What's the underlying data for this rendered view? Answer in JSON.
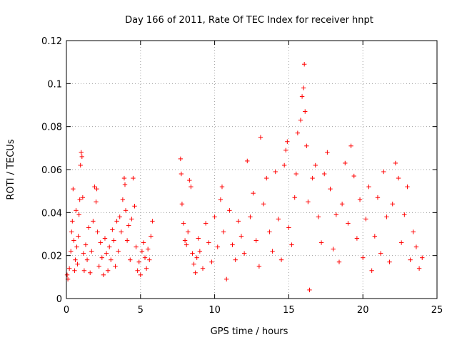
{
  "chart_data": {
    "type": "scatter",
    "title": "Day 166 of 2011, Rate Of TEC Index for receiver hnpt",
    "xlabel": "GPS time / hours",
    "ylabel": "ROTI / TECUs",
    "xlim": [
      0,
      25
    ],
    "ylim": [
      0,
      0.12
    ],
    "x_ticks": [
      "0",
      "5",
      "10",
      "15",
      "20",
      "25"
    ],
    "y_ticks": [
      "0",
      "0.02",
      "0.04",
      "0.06",
      "0.08",
      "0.1",
      "0.12"
    ],
    "grid": true,
    "marker": "+",
    "color": "#ff0000",
    "series": [
      {
        "points": [
          [
            0.05,
            0.011
          ],
          [
            0.1,
            0.009
          ],
          [
            0.2,
            0.014
          ],
          [
            0.3,
            0.022
          ],
          [
            0.35,
            0.031
          ],
          [
            0.4,
            0.036
          ],
          [
            0.45,
            0.051
          ],
          [
            0.5,
            0.027
          ],
          [
            0.55,
            0.013
          ],
          [
            0.6,
            0.018
          ],
          [
            0.65,
            0.041
          ],
          [
            0.7,
            0.024
          ],
          [
            0.75,
            0.016
          ],
          [
            0.8,
            0.029
          ],
          [
            0.85,
            0.039
          ],
          [
            0.9,
            0.046
          ],
          [
            0.95,
            0.062
          ],
          [
            1.0,
            0.068
          ],
          [
            1.05,
            0.066
          ],
          [
            1.1,
            0.047
          ],
          [
            1.15,
            0.021
          ],
          [
            1.2,
            0.013
          ],
          [
            1.3,
            0.025
          ],
          [
            1.4,
            0.018
          ],
          [
            1.5,
            0.033
          ],
          [
            1.6,
            0.012
          ],
          [
            1.7,
            0.022
          ],
          [
            1.8,
            0.036
          ],
          [
            1.9,
            0.052
          ],
          [
            2.0,
            0.045
          ],
          [
            2.05,
            0.051
          ],
          [
            2.1,
            0.031
          ],
          [
            2.2,
            0.015
          ],
          [
            2.3,
            0.026
          ],
          [
            2.4,
            0.019
          ],
          [
            2.5,
            0.011
          ],
          [
            2.6,
            0.028
          ],
          [
            2.7,
            0.021
          ],
          [
            2.8,
            0.013
          ],
          [
            2.9,
            0.024
          ],
          [
            3.0,
            0.018
          ],
          [
            3.1,
            0.032
          ],
          [
            3.2,
            0.027
          ],
          [
            3.3,
            0.015
          ],
          [
            3.4,
            0.036
          ],
          [
            3.5,
            0.022
          ],
          [
            3.6,
            0.038
          ],
          [
            3.7,
            0.031
          ],
          [
            3.8,
            0.046
          ],
          [
            3.9,
            0.056
          ],
          [
            3.95,
            0.053
          ],
          [
            4.0,
            0.041
          ],
          [
            4.1,
            0.027
          ],
          [
            4.2,
            0.034
          ],
          [
            4.3,
            0.018
          ],
          [
            4.4,
            0.037
          ],
          [
            4.5,
            0.056
          ],
          [
            4.6,
            0.043
          ],
          [
            4.7,
            0.024
          ],
          [
            4.8,
            0.013
          ],
          [
            4.9,
            0.017
          ],
          [
            5.0,
            0.011
          ],
          [
            5.1,
            0.022
          ],
          [
            5.2,
            0.026
          ],
          [
            5.3,
            0.019
          ],
          [
            5.4,
            0.014
          ],
          [
            5.5,
            0.023
          ],
          [
            5.6,
            0.018
          ],
          [
            5.7,
            0.029
          ],
          [
            5.8,
            0.036
          ],
          [
            7.7,
            0.065
          ],
          [
            7.75,
            0.058
          ],
          [
            7.8,
            0.044
          ],
          [
            7.9,
            0.035
          ],
          [
            8.0,
            0.027
          ],
          [
            8.1,
            0.025
          ],
          [
            8.2,
            0.031
          ],
          [
            8.3,
            0.055
          ],
          [
            8.4,
            0.052
          ],
          [
            8.5,
            0.021
          ],
          [
            8.6,
            0.016
          ],
          [
            8.7,
            0.012
          ],
          [
            8.8,
            0.019
          ],
          [
            8.9,
            0.028
          ],
          [
            9.0,
            0.022
          ],
          [
            9.2,
            0.014
          ],
          [
            9.4,
            0.035
          ],
          [
            9.6,
            0.026
          ],
          [
            9.8,
            0.017
          ],
          [
            10.0,
            0.038
          ],
          [
            10.2,
            0.024
          ],
          [
            10.4,
            0.046
          ],
          [
            10.5,
            0.052
          ],
          [
            10.6,
            0.031
          ],
          [
            10.8,
            0.009
          ],
          [
            11.0,
            0.041
          ],
          [
            11.2,
            0.025
          ],
          [
            11.4,
            0.018
          ],
          [
            11.6,
            0.036
          ],
          [
            11.8,
            0.029
          ],
          [
            12.0,
            0.021
          ],
          [
            12.2,
            0.064
          ],
          [
            12.4,
            0.038
          ],
          [
            12.6,
            0.049
          ],
          [
            12.8,
            0.027
          ],
          [
            13.0,
            0.015
          ],
          [
            13.1,
            0.075
          ],
          [
            13.3,
            0.044
          ],
          [
            13.5,
            0.056
          ],
          [
            13.7,
            0.031
          ],
          [
            13.9,
            0.022
          ],
          [
            14.1,
            0.059
          ],
          [
            14.3,
            0.037
          ],
          [
            14.5,
            0.018
          ],
          [
            14.7,
            0.062
          ],
          [
            14.8,
            0.069
          ],
          [
            14.9,
            0.073
          ],
          [
            15.0,
            0.033
          ],
          [
            15.2,
            0.025
          ],
          [
            15.4,
            0.047
          ],
          [
            15.5,
            0.058
          ],
          [
            15.6,
            0.077
          ],
          [
            15.8,
            0.083
          ],
          [
            15.9,
            0.094
          ],
          [
            16.0,
            0.098
          ],
          [
            16.05,
            0.109
          ],
          [
            16.1,
            0.087
          ],
          [
            16.2,
            0.071
          ],
          [
            16.3,
            0.045
          ],
          [
            16.4,
            0.004
          ],
          [
            16.6,
            0.056
          ],
          [
            16.8,
            0.062
          ],
          [
            17.0,
            0.038
          ],
          [
            17.2,
            0.026
          ],
          [
            17.4,
            0.058
          ],
          [
            17.6,
            0.068
          ],
          [
            17.8,
            0.051
          ],
          [
            18.0,
            0.023
          ],
          [
            18.2,
            0.039
          ],
          [
            18.4,
            0.017
          ],
          [
            18.6,
            0.044
          ],
          [
            18.8,
            0.063
          ],
          [
            19.0,
            0.035
          ],
          [
            19.2,
            0.071
          ],
          [
            19.4,
            0.057
          ],
          [
            19.6,
            0.028
          ],
          [
            19.8,
            0.046
          ],
          [
            20.0,
            0.019
          ],
          [
            20.2,
            0.037
          ],
          [
            20.4,
            0.052
          ],
          [
            20.6,
            0.013
          ],
          [
            20.8,
            0.029
          ],
          [
            21.0,
            0.047
          ],
          [
            21.2,
            0.021
          ],
          [
            21.4,
            0.059
          ],
          [
            21.6,
            0.038
          ],
          [
            21.8,
            0.017
          ],
          [
            22.0,
            0.044
          ],
          [
            22.2,
            0.063
          ],
          [
            22.4,
            0.056
          ],
          [
            22.6,
            0.026
          ],
          [
            22.8,
            0.039
          ],
          [
            23.0,
            0.052
          ],
          [
            23.2,
            0.018
          ],
          [
            23.4,
            0.031
          ],
          [
            23.6,
            0.024
          ],
          [
            23.8,
            0.014
          ],
          [
            24.0,
            0.019
          ]
        ]
      }
    ]
  }
}
